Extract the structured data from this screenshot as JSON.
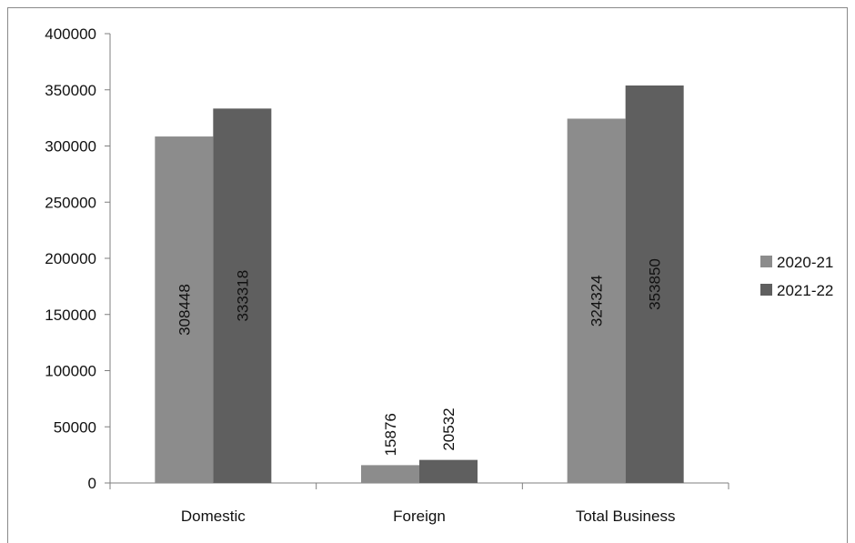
{
  "chart_data": {
    "type": "bar",
    "title": "",
    "xlabel": "",
    "ylabel": "",
    "categories": [
      "Domestic",
      "Foreign",
      "Total Business"
    ],
    "series": [
      {
        "name": "2020-21",
        "values": [
          308448,
          15876,
          324324
        ],
        "color": "#8c8c8c"
      },
      {
        "name": "2021-22",
        "values": [
          333318,
          20532,
          353850
        ],
        "color": "#5f5f5f"
      }
    ],
    "ylim": [
      0,
      400000
    ],
    "yticks": [
      0,
      50000,
      100000,
      150000,
      200000,
      250000,
      300000,
      350000,
      400000
    ],
    "grid": false,
    "legend": "right",
    "data_labels": "vertical"
  }
}
